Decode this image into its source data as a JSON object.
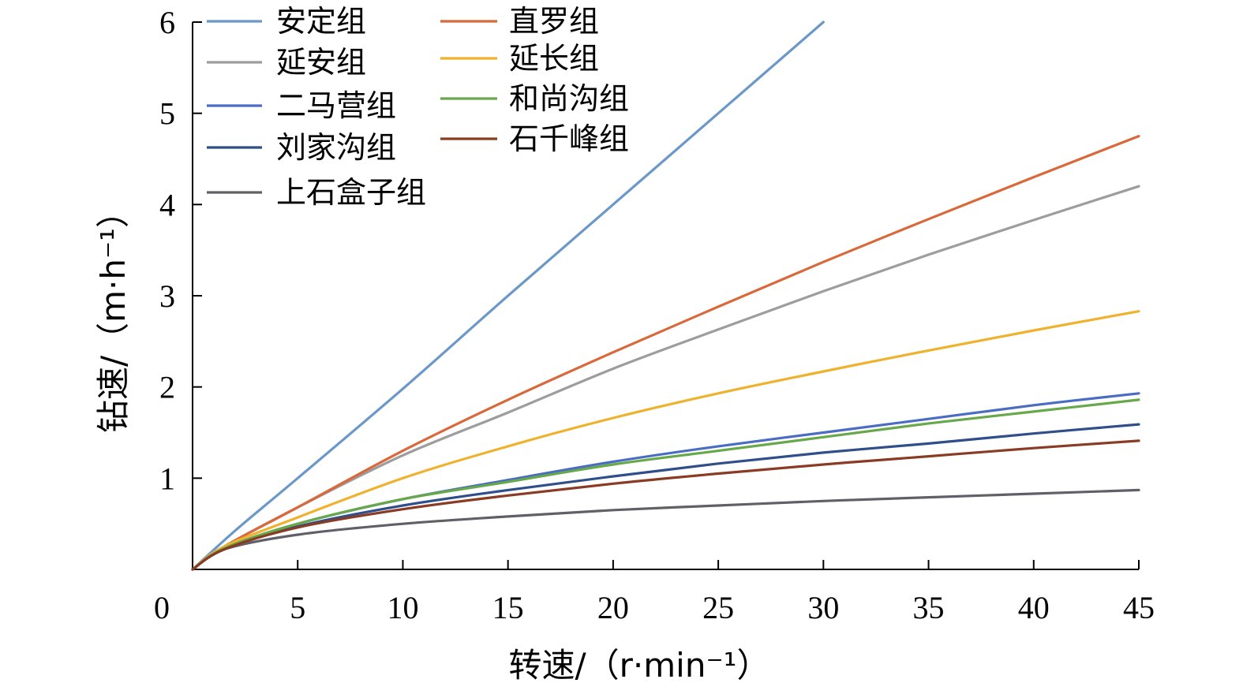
{
  "chart_data": {
    "type": "line",
    "xlabel": "转速/（r·min⁻¹）",
    "ylabel": "钻速/（m·h⁻¹）",
    "origin_label": "0",
    "xlim": [
      0,
      45
    ],
    "ylim": [
      0,
      6
    ],
    "x_ticks": [
      "5",
      "10",
      "15",
      "20",
      "25",
      "30",
      "35",
      "40",
      "45"
    ],
    "y_ticks": [
      "1",
      "2",
      "3",
      "4",
      "5",
      "6"
    ],
    "grid": false,
    "legend_position": "top-left",
    "series": [
      {
        "name": "安定组",
        "color": "#6b98c9",
        "x": [
          0,
          2,
          5,
          10,
          15,
          20,
          25,
          30
        ],
        "y": [
          0,
          0.42,
          1.0,
          1.98,
          3.0,
          4.0,
          5.0,
          6.0
        ]
      },
      {
        "name": "延安组",
        "color": "#9d9d9d",
        "x": [
          0,
          1.5,
          5,
          10,
          15,
          20,
          25,
          30,
          35,
          40,
          45
        ],
        "y": [
          0,
          0.25,
          0.68,
          1.25,
          1.72,
          2.2,
          2.63,
          3.05,
          3.45,
          3.83,
          4.2
        ]
      },
      {
        "name": "二马营组",
        "color": "#4a6cc2",
        "x": [
          0,
          1.5,
          5,
          10,
          15,
          20,
          25,
          30,
          35,
          40,
          45
        ],
        "y": [
          0,
          0.23,
          0.5,
          0.77,
          0.98,
          1.18,
          1.35,
          1.5,
          1.65,
          1.8,
          1.93
        ]
      },
      {
        "name": "刘家沟组",
        "color": "#2f4e8a",
        "x": [
          0,
          1.5,
          5,
          10,
          15,
          20,
          25,
          30,
          35,
          40,
          45
        ],
        "y": [
          0,
          0.22,
          0.47,
          0.7,
          0.87,
          1.02,
          1.16,
          1.28,
          1.38,
          1.49,
          1.59
        ]
      },
      {
        "name": "上石盒子组",
        "color": "#5f6068",
        "x": [
          0,
          1.5,
          5,
          10,
          15,
          20,
          25,
          30,
          35,
          40,
          45
        ],
        "y": [
          0,
          0.22,
          0.38,
          0.5,
          0.58,
          0.65,
          0.7,
          0.75,
          0.79,
          0.83,
          0.87
        ]
      },
      {
        "name": "直罗组",
        "color": "#d9683a",
        "x": [
          0,
          1.5,
          5,
          10,
          15,
          20,
          25,
          30,
          35,
          40,
          45
        ],
        "y": [
          0,
          0.25,
          0.68,
          1.3,
          1.86,
          2.38,
          2.88,
          3.37,
          3.84,
          4.3,
          4.75
        ]
      },
      {
        "name": "延长组",
        "color": "#eeb22f",
        "x": [
          0,
          1.5,
          5,
          10,
          15,
          20,
          25,
          30,
          35,
          40,
          45
        ],
        "y": [
          0,
          0.25,
          0.57,
          1.0,
          1.35,
          1.66,
          1.93,
          2.17,
          2.4,
          2.62,
          2.83
        ]
      },
      {
        "name": "和尚沟组",
        "color": "#66a84a",
        "x": [
          0,
          1.5,
          5,
          10,
          15,
          20,
          25,
          30,
          35,
          40,
          45
        ],
        "y": [
          0,
          0.23,
          0.5,
          0.77,
          0.96,
          1.15,
          1.3,
          1.45,
          1.6,
          1.73,
          1.86
        ]
      },
      {
        "name": "石千峰组",
        "color": "#8a3b23",
        "x": [
          0,
          1.5,
          5,
          10,
          15,
          20,
          25,
          30,
          35,
          40,
          45
        ],
        "y": [
          0,
          0.22,
          0.46,
          0.66,
          0.81,
          0.94,
          1.05,
          1.15,
          1.24,
          1.33,
          1.41
        ]
      }
    ]
  }
}
